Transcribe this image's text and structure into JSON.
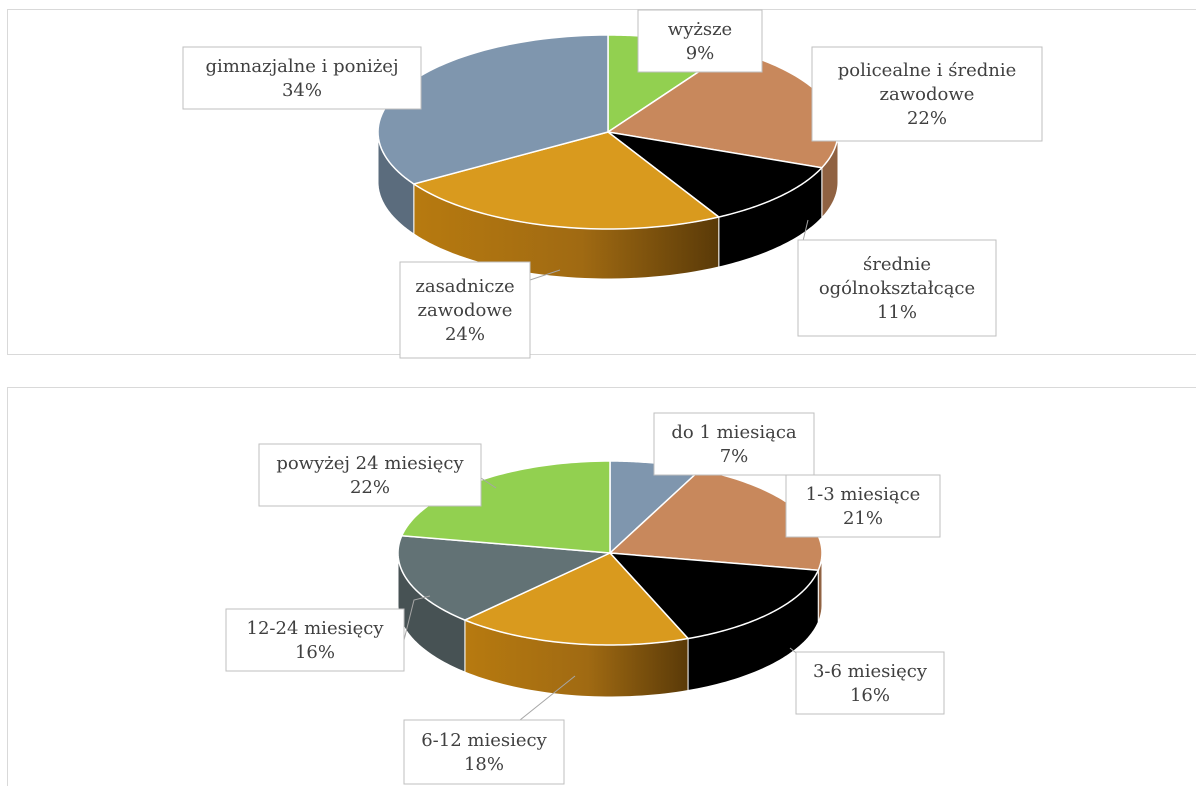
{
  "chart_data": [
    {
      "type": "pie",
      "title": "",
      "categories": [
        "wyższe",
        "policealne i średnie zawodowe",
        "średnie ogólnokształcące",
        "zasadnicze zawodowe",
        "gimnazjalne i poniżej"
      ],
      "values": [
        9,
        22,
        11,
        24,
        34
      ],
      "value_labels": [
        "9%",
        "22%",
        "11%",
        "24%",
        "34%"
      ],
      "colors": [
        "#92d050",
        "#c8885c",
        "#000000",
        "#d99a1e",
        "#7f96ae"
      ],
      "label_lines": [
        [
          "wyższe"
        ],
        [
          "policealne i średnie",
          "zawodowe"
        ],
        [
          "średnie",
          "ogólnokształcące"
        ],
        [
          "zasadnicze",
          "zawodowe"
        ],
        [
          "gimnazjalne i poniżej"
        ]
      ],
      "legend": "none"
    },
    {
      "type": "pie",
      "title": "",
      "categories": [
        "do 1 miesiąca",
        "1-3 miesiące",
        "3-6 miesięcy",
        "6-12 miesiecy",
        "12-24 miesięcy",
        "powyżej 24 miesięcy"
      ],
      "values": [
        7,
        21,
        16,
        18,
        16,
        22
      ],
      "value_labels": [
        "7%",
        "21%",
        "16%",
        "18%",
        "16%",
        "22%"
      ],
      "colors": [
        "#7f96ae",
        "#c8885c",
        "#000000",
        "#d99a1e",
        "#627275",
        "#92d050"
      ],
      "label_lines": [
        [
          "do 1 miesiąca"
        ],
        [
          "1-3 miesiące"
        ],
        [
          "3-6 miesięcy"
        ],
        [
          "6-12 miesiecy"
        ],
        [
          "12-24 miesięcy"
        ],
        [
          "powyżej 24 miesięcy"
        ]
      ],
      "legend": "none"
    }
  ]
}
